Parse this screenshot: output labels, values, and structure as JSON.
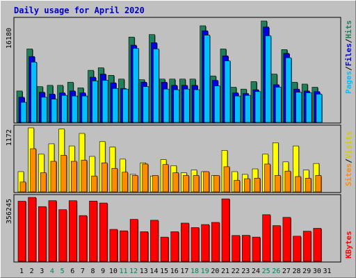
{
  "title": "Daily usage for April 2020",
  "colors": {
    "background": "#c0c0c0",
    "title": "#0000c0",
    "hits": "#1e7f5a",
    "files": "#0000e0",
    "pages": "#00c0ff",
    "visits": "#ffff00",
    "sites": "#ff8c00",
    "kbytes": "#ff0000",
    "weekend_day_label": "#00805a",
    "weekday_day_label": "#000000"
  },
  "chart_data": [
    {
      "type": "bar",
      "panel": "hits-files-pages",
      "y_max_label": "16180",
      "y_max": 16180,
      "legend": [
        "Pages",
        "Files",
        "Hits"
      ],
      "categories": [
        "1",
        "2",
        "3",
        "4",
        "5",
        "6",
        "7",
        "8",
        "9",
        "10",
        "11",
        "12",
        "13",
        "14",
        "15",
        "16",
        "17",
        "18",
        "19",
        "20",
        "21",
        "22",
        "23",
        "24",
        "25",
        "26",
        "27",
        "28",
        "29",
        "30",
        "31"
      ],
      "series": [
        {
          "name": "Hits",
          "color": "#1e7f5a",
          "values": [
            5000,
            11700,
            5700,
            5900,
            5900,
            6400,
            5500,
            8300,
            8700,
            7500,
            6900,
            13600,
            6800,
            14000,
            6900,
            6900,
            6900,
            6900,
            15400,
            7400,
            11700,
            5600,
            5300,
            6500,
            16170,
            7700,
            11600,
            6400,
            6100,
            5600,
            null
          ]
        },
        {
          "name": "Files",
          "color": "#0000e0",
          "values": [
            4000,
            10500,
            4800,
            4500,
            4700,
            5000,
            4700,
            7200,
            7700,
            6300,
            5400,
            12300,
            6400,
            12700,
            6400,
            5900,
            5900,
            5900,
            14600,
            6700,
            10600,
            4700,
            4600,
            5200,
            15200,
            6000,
            11000,
            5300,
            5000,
            4900,
            null
          ]
        },
        {
          "name": "Pages",
          "color": "#00c0ff",
          "values": [
            3200,
            9600,
            4000,
            3700,
            4300,
            4200,
            4200,
            6600,
            6700,
            5400,
            5300,
            11800,
            5700,
            11700,
            5300,
            5200,
            5300,
            5200,
            13900,
            5800,
            9800,
            4200,
            4300,
            4900,
            13800,
            5600,
            10300,
            4800,
            4700,
            4500,
            null
          ]
        }
      ]
    },
    {
      "type": "bar",
      "panel": "visits-sites",
      "y_max_label": "1172",
      "y_max": 1172,
      "legend": [
        "Sites",
        "Visits"
      ],
      "series": [
        {
          "name": "Visits",
          "color": "#ffff00",
          "values": [
            370,
            1172,
            690,
            880,
            1150,
            840,
            1070,
            650,
            920,
            820,
            600,
            320,
            530,
            290,
            590,
            480,
            350,
            400,
            370,
            300,
            760,
            370,
            320,
            420,
            690,
            900,
            550,
            840,
            400,
            520,
            null
          ]
        },
        {
          "name": "Sites",
          "color": "#ff8c00",
          "values": [
            180,
            790,
            350,
            560,
            670,
            560,
            580,
            290,
            530,
            430,
            360,
            300,
            510,
            300,
            500,
            350,
            300,
            300,
            370,
            300,
            460,
            210,
            240,
            250,
            510,
            300,
            380,
            280,
            250,
            300,
            null
          ]
        }
      ]
    },
    {
      "type": "bar",
      "panel": "kbytes",
      "y_max_label": "356245",
      "y_max": 356245,
      "legend": [
        "KBytes"
      ],
      "series": [
        {
          "name": "KBytes",
          "color": "#ff0000",
          "values": [
            335000,
            356245,
            305000,
            338000,
            288000,
            338000,
            255000,
            336000,
            325000,
            178000,
            170000,
            234000,
            165000,
            229000,
            135000,
            165000,
            213000,
            188000,
            205000,
            217000,
            348000,
            144000,
            145000,
            135000,
            260000,
            199000,
            245000,
            140000,
            168000,
            184000,
            null
          ]
        }
      ]
    }
  ],
  "day_labels": [
    {
      "t": "1",
      "weekend": false
    },
    {
      "t": "2",
      "weekend": false
    },
    {
      "t": "3",
      "weekend": false
    },
    {
      "t": "4",
      "weekend": true
    },
    {
      "t": "5",
      "weekend": true
    },
    {
      "t": "6",
      "weekend": false
    },
    {
      "t": "7",
      "weekend": false
    },
    {
      "t": "8",
      "weekend": false
    },
    {
      "t": "9",
      "weekend": false
    },
    {
      "t": "10",
      "weekend": false
    },
    {
      "t": "11",
      "weekend": true
    },
    {
      "t": "12",
      "weekend": true
    },
    {
      "t": "13",
      "weekend": false
    },
    {
      "t": "14",
      "weekend": false
    },
    {
      "t": "15",
      "weekend": false
    },
    {
      "t": "16",
      "weekend": false
    },
    {
      "t": "17",
      "weekend": false
    },
    {
      "t": "18",
      "weekend": true
    },
    {
      "t": "19",
      "weekend": true
    },
    {
      "t": "20",
      "weekend": false
    },
    {
      "t": "21",
      "weekend": false
    },
    {
      "t": "22",
      "weekend": false
    },
    {
      "t": "23",
      "weekend": false
    },
    {
      "t": "24",
      "weekend": false
    },
    {
      "t": "25",
      "weekend": true
    },
    {
      "t": "26",
      "weekend": true
    },
    {
      "t": "27",
      "weekend": false
    },
    {
      "t": "28",
      "weekend": false
    },
    {
      "t": "29",
      "weekend": false
    },
    {
      "t": "30",
      "weekend": false
    },
    {
      "t": "31",
      "weekend": false
    }
  ],
  "legend_sep": "/"
}
